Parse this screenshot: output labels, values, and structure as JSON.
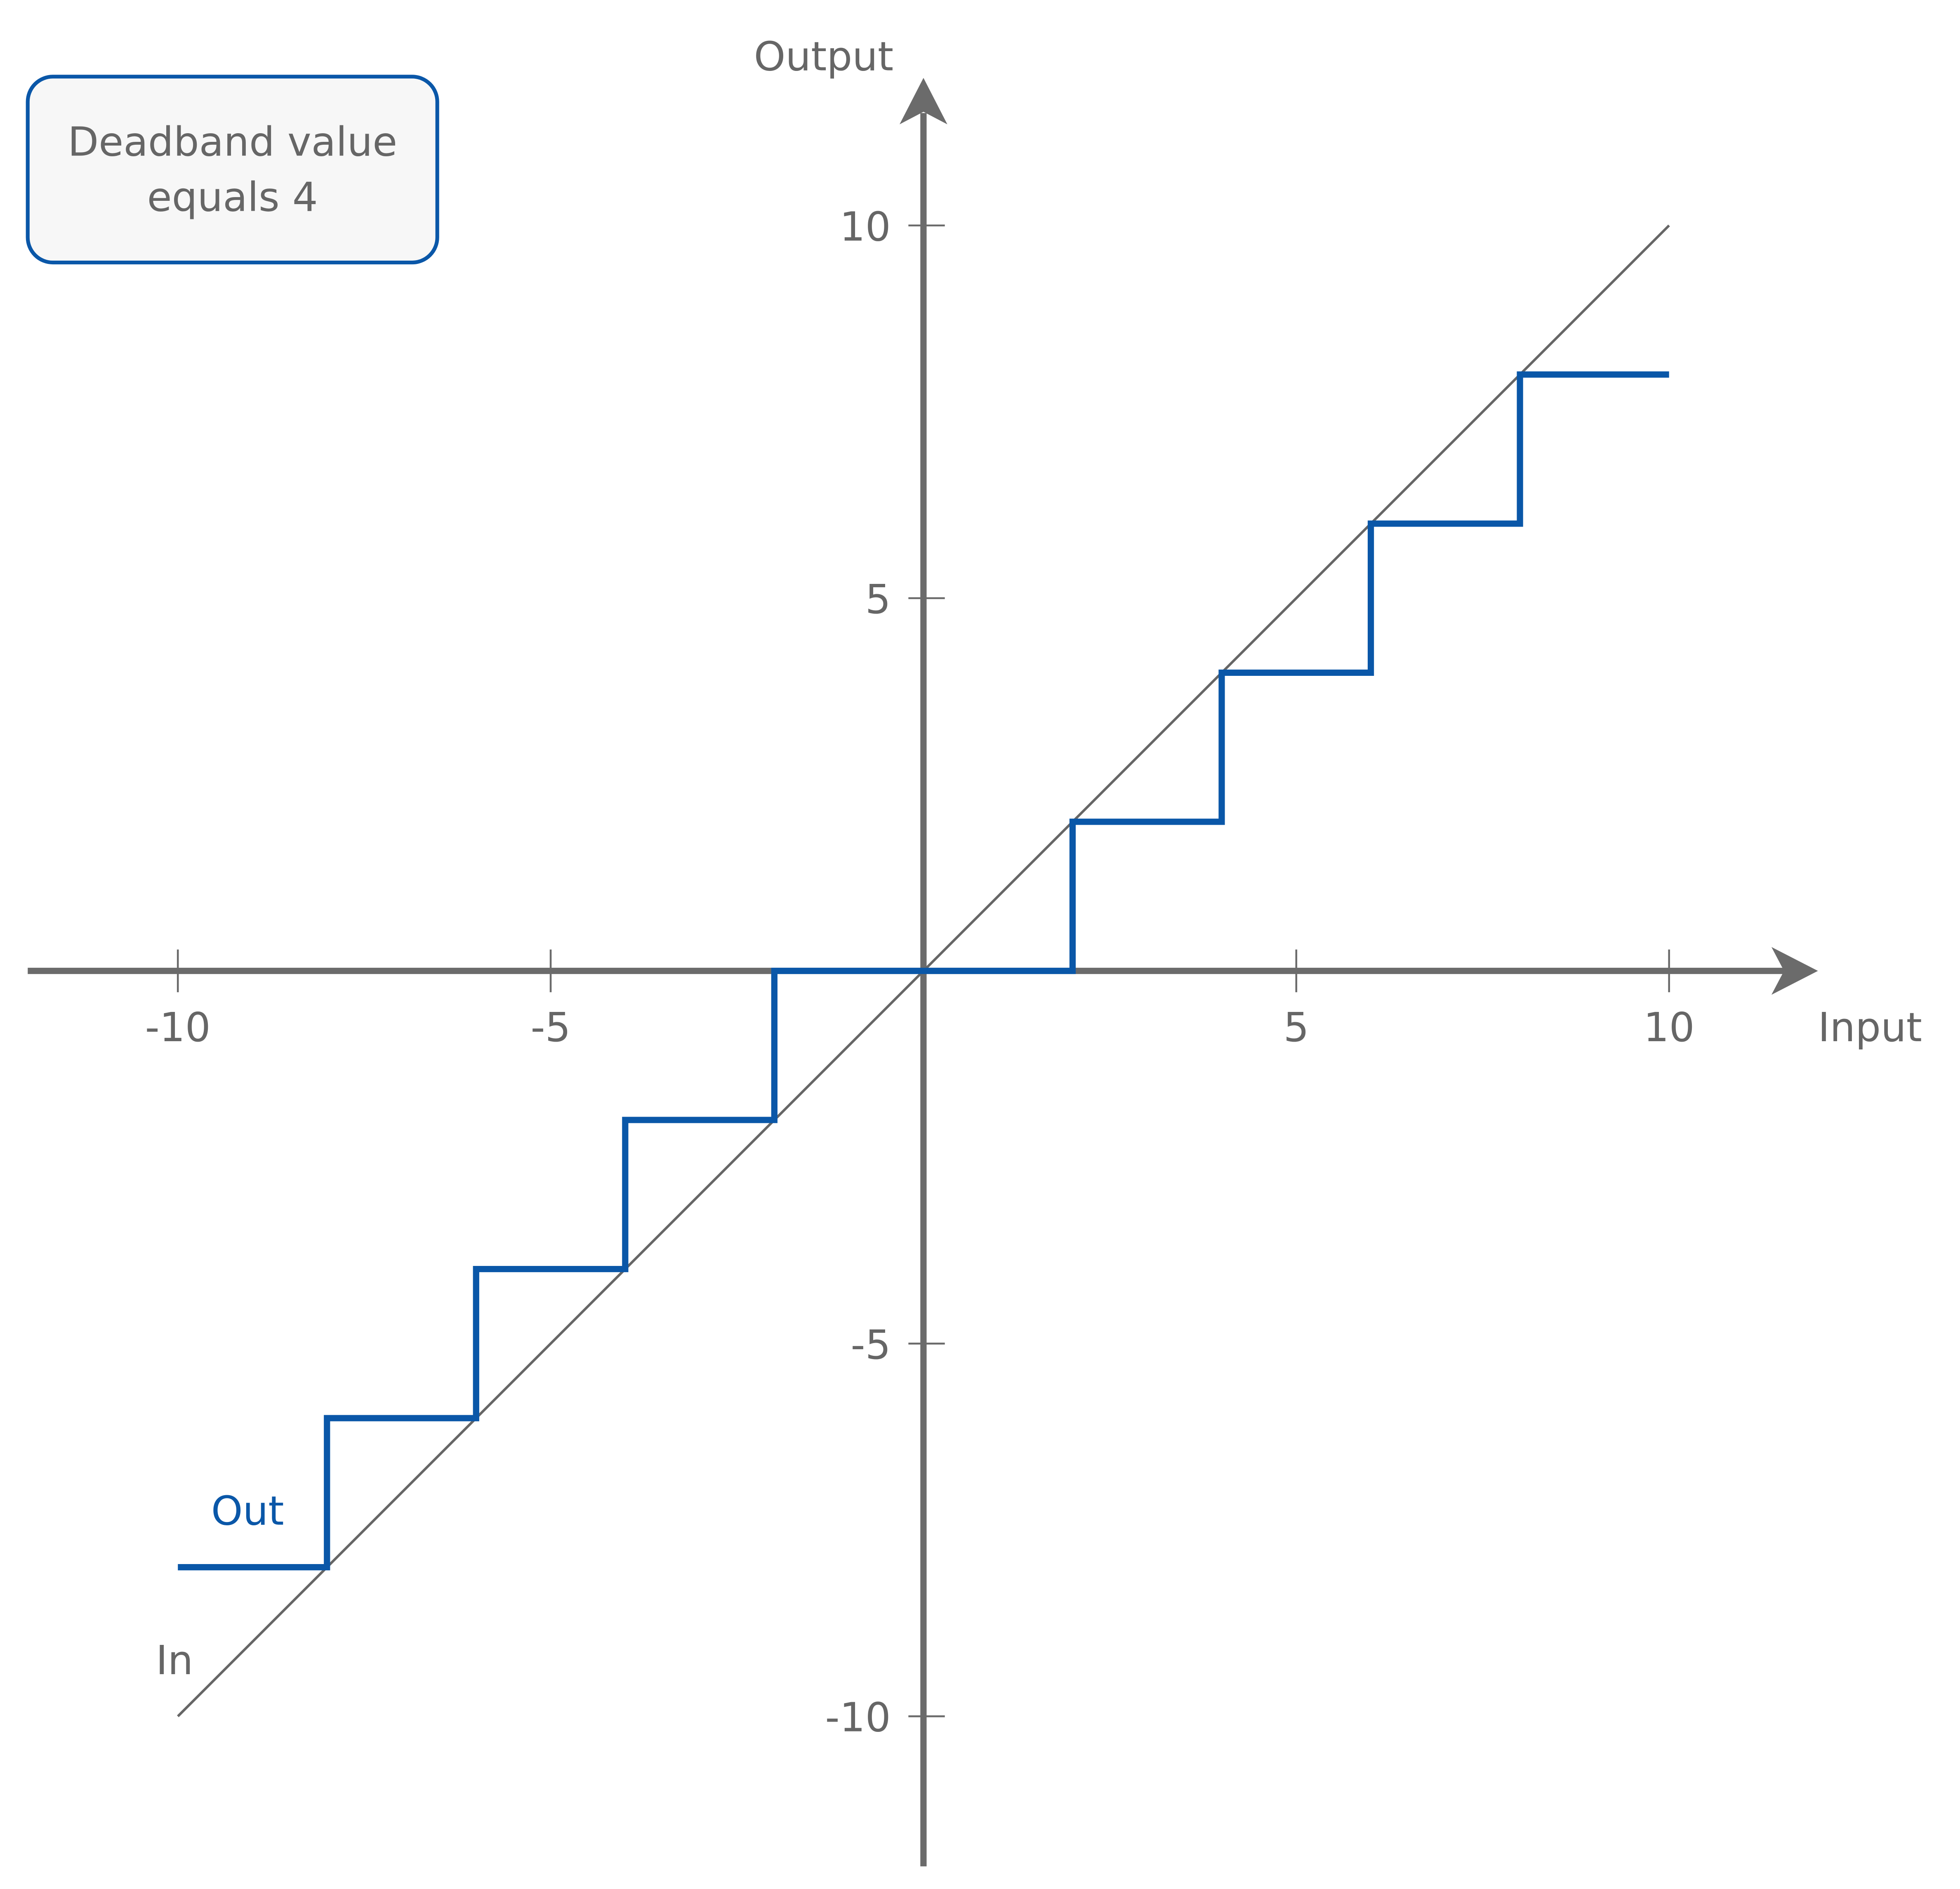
{
  "chart_data": {
    "type": "line",
    "xlabel": "Input",
    "ylabel": "Output",
    "xlim": [
      -12,
      12
    ],
    "ylim": [
      -12,
      12
    ],
    "x_ticks": [
      -10,
      -5,
      5,
      10
    ],
    "y_ticks": [
      10,
      5,
      -5,
      -10
    ],
    "x_tick_labels": [
      "-10",
      "-5",
      "5",
      "10"
    ],
    "y_tick_labels": [
      "10",
      "5",
      "-5",
      "-10"
    ],
    "grid": false,
    "series": [
      {
        "name": "In",
        "color": "#666666",
        "x": [
          -10,
          10
        ],
        "y": [
          -10,
          10
        ]
      },
      {
        "name": "Out",
        "color": "#0a57a8",
        "step": true,
        "x": [
          -10,
          -8,
          -8,
          -6,
          -6,
          -4,
          -4,
          -2,
          -2,
          2,
          2,
          4,
          4,
          6,
          6,
          8,
          8,
          10
        ],
        "y": [
          -8,
          -8,
          -6,
          -6,
          -4,
          -4,
          -2,
          -2,
          0,
          0,
          2,
          2,
          4,
          4,
          6,
          6,
          8,
          8
        ]
      }
    ],
    "annotation": {
      "line1": "Deadband value",
      "line2": "equals 4"
    }
  },
  "colors": {
    "axis": "#6b6b6b",
    "accent": "#0a57a8",
    "box_fill": "#f7f7f7"
  }
}
